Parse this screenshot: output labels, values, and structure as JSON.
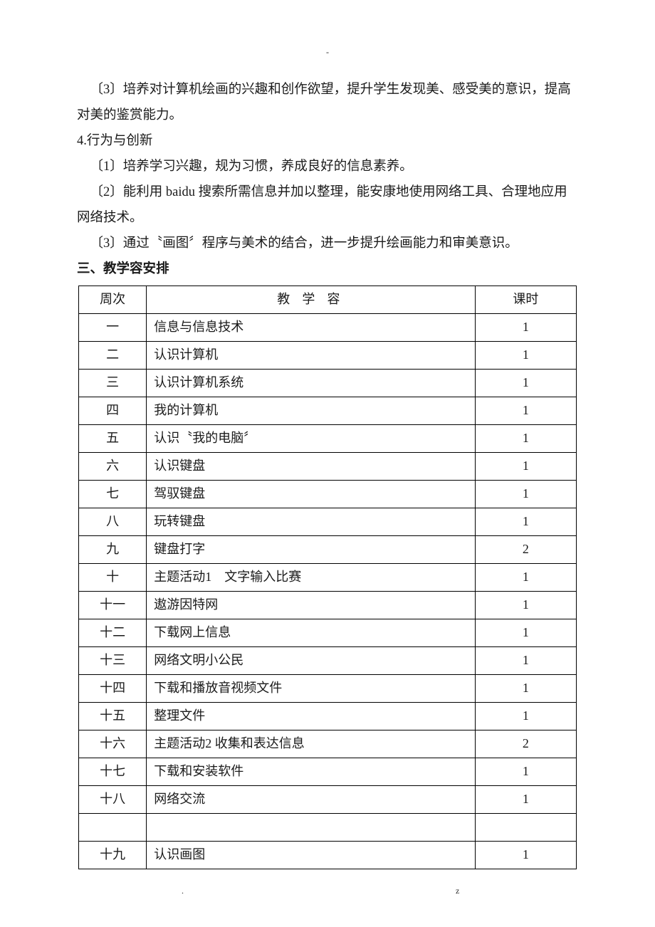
{
  "topMark": "-",
  "paragraphs": {
    "p1": "〔3〕培养对计算机绘画的兴趣和创作欲望，提升学生发现美、感受美的意识，提高对美的鉴赏能力。",
    "p2": "4.行为与创新",
    "p3": "〔1〕培养学习兴趣，规为习惯，养成良好的信息素养。",
    "p4": "〔2〕能利用 baidu 搜索所需信息并加以整理，能安康地使用网络工具、合理地应用网络技术。",
    "p5": "〔3〕通过〝画图〞程序与美术的结合，进一步提升绘画能力和审美意识。",
    "p6": "三、教学容安排"
  },
  "table": {
    "headers": {
      "week": "周次",
      "content": "教 学   容",
      "hours": "课时"
    },
    "rows": [
      {
        "week": "一",
        "content": "信息与信息技术",
        "hours": "1"
      },
      {
        "week": "二",
        "content": "认识计算机",
        "hours": "1"
      },
      {
        "week": "三",
        "content": "认识计算机系统",
        "hours": "1"
      },
      {
        "week": "四",
        "content": "我的计算机",
        "hours": "1"
      },
      {
        "week": "五",
        "content": "认识〝我的电脑〞",
        "hours": "1"
      },
      {
        "week": "六",
        "content": "认识键盘",
        "hours": "1"
      },
      {
        "week": "七",
        "content": "驾驭键盘",
        "hours": "1"
      },
      {
        "week": "八",
        "content": "玩转键盘",
        "hours": "1"
      },
      {
        "week": "九",
        "content": "键盘打字",
        "hours": "2"
      },
      {
        "week": "十",
        "content": "主题活动1　文字输入比赛",
        "hours": "1"
      },
      {
        "week": "十一",
        "content": "遨游因特网",
        "hours": "1"
      },
      {
        "week": "十二",
        "content": "下载网上信息",
        "hours": "1"
      },
      {
        "week": "十三",
        "content": "网络文明小公民",
        "hours": "1"
      },
      {
        "week": "十四",
        "content": "下载和播放音视频文件",
        "hours": "1"
      },
      {
        "week": "十五",
        "content": "整理文件",
        "hours": "1"
      },
      {
        "week": "十六",
        "content": "主题活动2 收集和表达信息",
        "hours": "2"
      },
      {
        "week": "十七",
        "content": "下载和安装软件",
        "hours": "1"
      },
      {
        "week": "十八",
        "content": "网络交流",
        "hours": "1"
      },
      {
        "week": "",
        "content": "",
        "hours": ""
      },
      {
        "week": "十九",
        "content": "认识画图",
        "hours": "1"
      }
    ]
  },
  "footer": {
    "dot": ".",
    "z": "z"
  }
}
